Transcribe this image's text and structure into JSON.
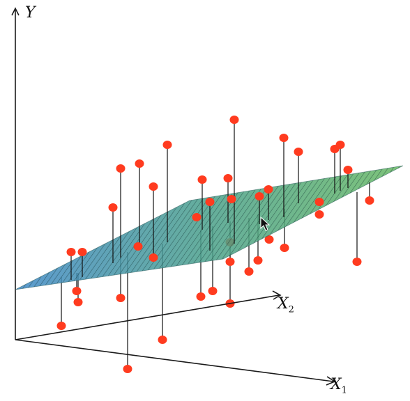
{
  "axes": {
    "y": {
      "name": "Y"
    },
    "x2": {
      "name": "X",
      "sub": "2"
    },
    "x1": {
      "name": "X",
      "sub": "1"
    }
  },
  "colors": {
    "point": "#ff3b1f",
    "plane_left": "#3f88c7",
    "plane_right": "#5fb56a",
    "axis": "#1a1a1a"
  },
  "observations_above_plane": 20,
  "observations_below_plane": 17
}
